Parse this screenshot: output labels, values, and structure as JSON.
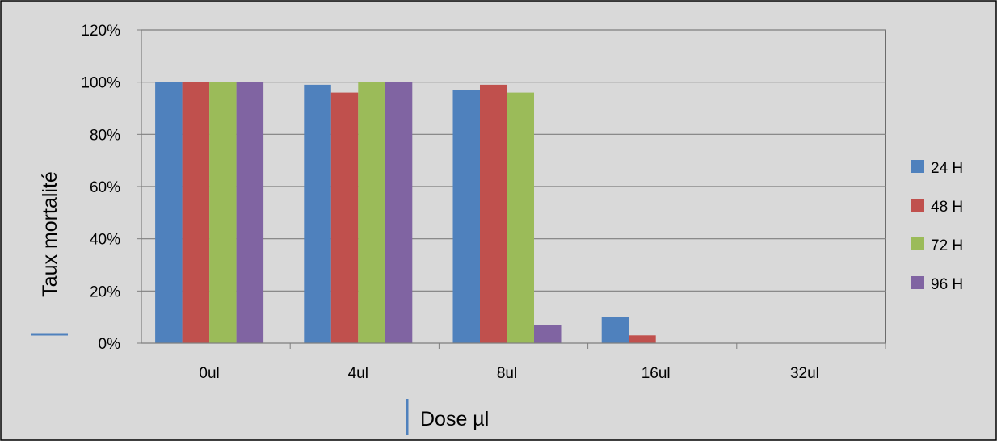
{
  "chart_data": {
    "type": "bar",
    "title": "",
    "xlabel": "Dose µl",
    "ylabel": "Taux mortalité",
    "categories": [
      "0ul",
      "4ul",
      "8ul",
      "16ul",
      "32ul"
    ],
    "ylim": [
      0,
      1.2
    ],
    "yticks": [
      0,
      0.2,
      0.4,
      0.6,
      0.8,
      1.0,
      1.2
    ],
    "ytick_labels": [
      "0%",
      "20%",
      "40%",
      "60%",
      "80%",
      "100%",
      "120%"
    ],
    "grid": true,
    "legend_position": "right",
    "series": [
      {
        "name": "24 H",
        "color": "#4f81bd",
        "values": [
          1.0,
          0.99,
          0.97,
          0.1,
          0.0
        ]
      },
      {
        "name": "48 H",
        "color": "#c0504d",
        "values": [
          1.0,
          0.96,
          0.99,
          0.03,
          0.0
        ]
      },
      {
        "name": "72 H",
        "color": "#9bbb59",
        "values": [
          1.0,
          1.0,
          0.96,
          0.0,
          0.0
        ]
      },
      {
        "name": "96 H",
        "color": "#8064a2",
        "values": [
          1.0,
          1.0,
          0.07,
          0.0,
          0.0
        ]
      }
    ],
    "colors": {
      "plot_background": "#d9d9d9",
      "chart_background": "#d9d9d9",
      "gridline": "#7f7f7f",
      "accent_marker": "#4f81bd"
    }
  }
}
